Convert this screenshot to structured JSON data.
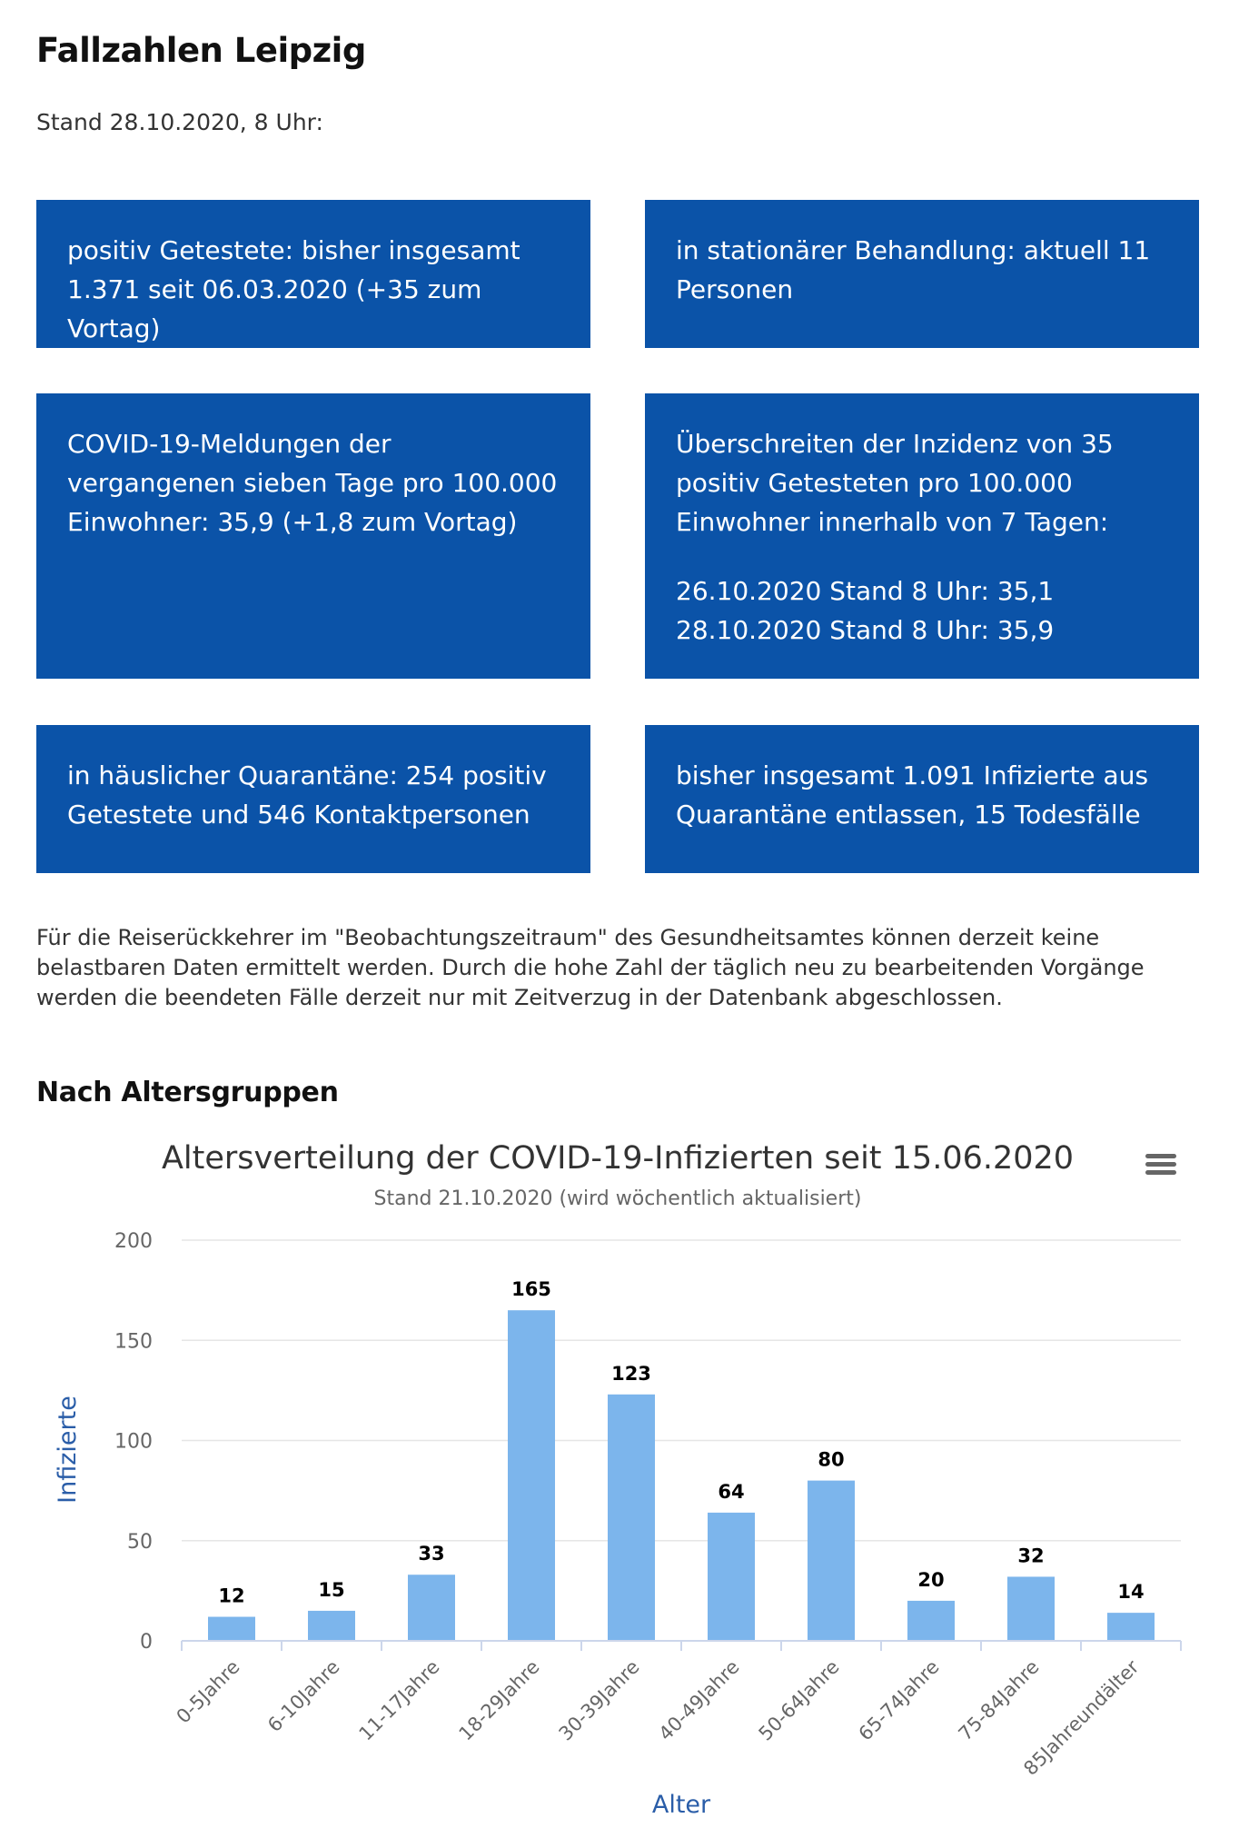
{
  "header": {
    "title": "Fallzahlen Leipzig",
    "stand": "Stand 28.10.2020, 8 Uhr:"
  },
  "boxes": [
    {
      "lines": [
        "positiv Getestete: bisher insgesamt 1.371 seit 06.03.2020 (+35 zum Vortag)"
      ]
    },
    {
      "lines": [
        "in stationärer Behandlung: aktuell 11 Personen"
      ]
    },
    {
      "lines": [
        "COVID-19-Meldungen der vergangenen sieben Tage pro 100.000 Einwohner: 35,9 (+1,8 zum Vortag)"
      ]
    },
    {
      "lines": [
        "Überschreiten der Inzidenz von 35 positiv Getesteten pro 100.000 Einwohner innerhalb von 7 Tagen:",
        "26.10.2020 Stand 8 Uhr: 35,1\n28.10.2020 Stand 8 Uhr: 35,9"
      ]
    },
    {
      "lines": [
        "in häuslicher Quarantäne: 254 positiv Getestete und 546 Kontaktpersonen"
      ]
    },
    {
      "lines": [
        "bisher insgesamt 1.091 Infizierte aus Quarantäne entlassen, 15 Todesfälle"
      ]
    }
  ],
  "note": "Für die Reiserückkehrer im \"Beobachtungszeitraum\" des Gesundheitsamtes können derzeit keine belastbaren Daten ermittelt werden. Durch die hohe Zahl der täglich neu zu bearbeitenden Vorgänge werden die beendeten Fälle derzeit nur mit Zeitverzug in der Datenbank abgeschlossen.",
  "section_title": "Nach Altersgruppen",
  "chart_data": {
    "type": "bar",
    "title": "Altersverteilung der COVID-19-Infizierten seit 15.06.2020",
    "subtitle": "Stand 21.10.2020 (wird wöchentlich aktualisiert)",
    "xlabel": "Alter",
    "ylabel": "Infizierte",
    "categories": [
      "0-5Jahre",
      "6-10Jahre",
      "11-17Jahre",
      "18-29Jahre",
      "30-39Jahre",
      "40-49Jahre",
      "50-64Jahre",
      "65-74Jahre",
      "75-84Jahre",
      "85Jahreundälter"
    ],
    "values": [
      12,
      15,
      33,
      165,
      123,
      64,
      80,
      20,
      32,
      14
    ],
    "yticks": [
      0,
      50,
      100,
      150,
      200
    ],
    "ylim": [
      0,
      200
    ],
    "grid": true,
    "data_labels": true,
    "legend": false,
    "bar_color": "#7cb5ec",
    "axis_title_color": "#2a5da8"
  },
  "colors": {
    "box_background": "#0b53a8"
  },
  "menu_icon": "hamburger-menu-icon"
}
